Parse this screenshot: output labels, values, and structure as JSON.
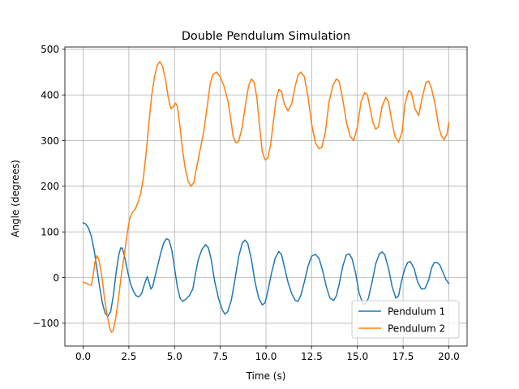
{
  "chart_data": {
    "type": "line",
    "title": "Double Pendulum Simulation",
    "xlabel": "Time (s)",
    "ylabel": "Angle (degrees)",
    "xlim": [
      -1.0,
      21.0
    ],
    "ylim": [
      -150,
      505
    ],
    "grid": true,
    "legend": "lower-right",
    "xticks": [
      0.0,
      2.5,
      5.0,
      7.5,
      10.0,
      12.5,
      15.0,
      17.5,
      20.0
    ],
    "xtick_labels": [
      "0.0",
      "2.5",
      "5.0",
      "7.5",
      "10.0",
      "12.5",
      "15.0",
      "17.5",
      "20.0"
    ],
    "yticks": [
      -100,
      0,
      100,
      200,
      300,
      400,
      500
    ],
    "ytick_labels": [
      "−100",
      "0",
      "100",
      "200",
      "300",
      "400",
      "500"
    ],
    "series": [
      {
        "name": "Pendulum 1",
        "color": "#1f77b4",
        "points": [
          [
            0.0,
            120
          ],
          [
            0.15,
            117
          ],
          [
            0.3,
            108
          ],
          [
            0.45,
            90
          ],
          [
            0.6,
            60
          ],
          [
            0.75,
            20
          ],
          [
            0.9,
            -20
          ],
          [
            1.05,
            -55
          ],
          [
            1.2,
            -78
          ],
          [
            1.35,
            -85
          ],
          [
            1.5,
            -75
          ],
          [
            1.65,
            -40
          ],
          [
            1.8,
            10
          ],
          [
            1.95,
            50
          ],
          [
            2.05,
            65
          ],
          [
            2.15,
            64
          ],
          [
            2.3,
            40
          ],
          [
            2.45,
            10
          ],
          [
            2.6,
            -15
          ],
          [
            2.75,
            -30
          ],
          [
            2.9,
            -40
          ],
          [
            3.05,
            -42
          ],
          [
            3.2,
            -35
          ],
          [
            3.35,
            -15
          ],
          [
            3.5,
            2
          ],
          [
            3.6,
            -10
          ],
          [
            3.7,
            -25
          ],
          [
            3.8,
            -20
          ],
          [
            3.95,
            5
          ],
          [
            4.1,
            30
          ],
          [
            4.25,
            55
          ],
          [
            4.4,
            75
          ],
          [
            4.55,
            85
          ],
          [
            4.7,
            82
          ],
          [
            4.85,
            60
          ],
          [
            5.0,
            20
          ],
          [
            5.15,
            -20
          ],
          [
            5.3,
            -45
          ],
          [
            5.45,
            -52
          ],
          [
            5.6,
            -48
          ],
          [
            5.8,
            -40
          ],
          [
            6.0,
            -25
          ],
          [
            6.15,
            10
          ],
          [
            6.3,
            40
          ],
          [
            6.5,
            62
          ],
          [
            6.7,
            72
          ],
          [
            6.85,
            65
          ],
          [
            7.0,
            40
          ],
          [
            7.2,
            -10
          ],
          [
            7.4,
            -45
          ],
          [
            7.6,
            -70
          ],
          [
            7.75,
            -80
          ],
          [
            7.9,
            -75
          ],
          [
            8.1,
            -50
          ],
          [
            8.3,
            -5
          ],
          [
            8.5,
            45
          ],
          [
            8.7,
            75
          ],
          [
            8.85,
            82
          ],
          [
            9.0,
            75
          ],
          [
            9.2,
            40
          ],
          [
            9.4,
            -10
          ],
          [
            9.6,
            -45
          ],
          [
            9.8,
            -60
          ],
          [
            9.95,
            -55
          ],
          [
            10.1,
            -30
          ],
          [
            10.3,
            10
          ],
          [
            10.5,
            42
          ],
          [
            10.7,
            57
          ],
          [
            10.85,
            50
          ],
          [
            11.0,
            25
          ],
          [
            11.2,
            -10
          ],
          [
            11.4,
            -35
          ],
          [
            11.6,
            -50
          ],
          [
            11.75,
            -52
          ],
          [
            11.9,
            -40
          ],
          [
            12.1,
            -10
          ],
          [
            12.3,
            25
          ],
          [
            12.5,
            47
          ],
          [
            12.7,
            51
          ],
          [
            12.9,
            42
          ],
          [
            13.1,
            15
          ],
          [
            13.3,
            -20
          ],
          [
            13.5,
            -45
          ],
          [
            13.7,
            -50
          ],
          [
            13.85,
            -40
          ],
          [
            14.0,
            -15
          ],
          [
            14.2,
            25
          ],
          [
            14.4,
            50
          ],
          [
            14.55,
            52
          ],
          [
            14.7,
            42
          ],
          [
            14.9,
            10
          ],
          [
            15.1,
            -35
          ],
          [
            15.3,
            -57
          ],
          [
            15.45,
            -58
          ],
          [
            15.6,
            -45
          ],
          [
            15.8,
            -10
          ],
          [
            16.0,
            30
          ],
          [
            16.2,
            52
          ],
          [
            16.35,
            56
          ],
          [
            16.5,
            50
          ],
          [
            16.7,
            20
          ],
          [
            16.9,
            -20
          ],
          [
            17.1,
            -45
          ],
          [
            17.25,
            -40
          ],
          [
            17.4,
            -10
          ],
          [
            17.6,
            20
          ],
          [
            17.75,
            33
          ],
          [
            17.9,
            35
          ],
          [
            18.1,
            20
          ],
          [
            18.3,
            -10
          ],
          [
            18.5,
            -25
          ],
          [
            18.7,
            -24
          ],
          [
            18.9,
            -5
          ],
          [
            19.05,
            20
          ],
          [
            19.2,
            33
          ],
          [
            19.35,
            33
          ],
          [
            19.5,
            28
          ],
          [
            19.7,
            10
          ],
          [
            19.85,
            -5
          ],
          [
            20.0,
            -13
          ]
        ]
      },
      {
        "name": "Pendulum 2",
        "color": "#ff7f0e",
        "points": [
          [
            0.0,
            -10
          ],
          [
            0.15,
            -12
          ],
          [
            0.3,
            -15
          ],
          [
            0.45,
            -17
          ],
          [
            0.55,
            5
          ],
          [
            0.65,
            35
          ],
          [
            0.75,
            48
          ],
          [
            0.85,
            40
          ],
          [
            0.95,
            20
          ],
          [
            1.05,
            -5
          ],
          [
            1.15,
            -40
          ],
          [
            1.3,
            -80
          ],
          [
            1.45,
            -110
          ],
          [
            1.55,
            -120
          ],
          [
            1.65,
            -115
          ],
          [
            1.8,
            -85
          ],
          [
            1.95,
            -40
          ],
          [
            2.1,
            10
          ],
          [
            2.25,
            50
          ],
          [
            2.4,
            95
          ],
          [
            2.55,
            130
          ],
          [
            2.7,
            143
          ],
          [
            2.85,
            150
          ],
          [
            3.0,
            165
          ],
          [
            3.15,
            185
          ],
          [
            3.3,
            220
          ],
          [
            3.45,
            275
          ],
          [
            3.6,
            340
          ],
          [
            3.75,
            400
          ],
          [
            3.9,
            440
          ],
          [
            4.05,
            465
          ],
          [
            4.2,
            473
          ],
          [
            4.35,
            462
          ],
          [
            4.5,
            435
          ],
          [
            4.65,
            395
          ],
          [
            4.8,
            370
          ],
          [
            4.95,
            375
          ],
          [
            5.05,
            382
          ],
          [
            5.15,
            375
          ],
          [
            5.3,
            330
          ],
          [
            5.45,
            275
          ],
          [
            5.6,
            235
          ],
          [
            5.75,
            210
          ],
          [
            5.9,
            200
          ],
          [
            6.05,
            208
          ],
          [
            6.2,
            240
          ],
          [
            6.4,
            280
          ],
          [
            6.6,
            320
          ],
          [
            6.8,
            380
          ],
          [
            6.95,
            425
          ],
          [
            7.1,
            445
          ],
          [
            7.3,
            450
          ],
          [
            7.5,
            440
          ],
          [
            7.7,
            420
          ],
          [
            7.9,
            390
          ],
          [
            8.05,
            355
          ],
          [
            8.2,
            310
          ],
          [
            8.35,
            295
          ],
          [
            8.5,
            298
          ],
          [
            8.7,
            330
          ],
          [
            8.9,
            385
          ],
          [
            9.05,
            420
          ],
          [
            9.2,
            435
          ],
          [
            9.35,
            428
          ],
          [
            9.5,
            395
          ],
          [
            9.65,
            330
          ],
          [
            9.8,
            275
          ],
          [
            9.95,
            258
          ],
          [
            10.1,
            262
          ],
          [
            10.25,
            290
          ],
          [
            10.4,
            340
          ],
          [
            10.55,
            390
          ],
          [
            10.7,
            412
          ],
          [
            10.85,
            408
          ],
          [
            11.0,
            380
          ],
          [
            11.2,
            365
          ],
          [
            11.4,
            380
          ],
          [
            11.6,
            420
          ],
          [
            11.75,
            443
          ],
          [
            11.9,
            450
          ],
          [
            12.1,
            440
          ],
          [
            12.3,
            395
          ],
          [
            12.5,
            335
          ],
          [
            12.7,
            295
          ],
          [
            12.9,
            282
          ],
          [
            13.05,
            285
          ],
          [
            13.25,
            320
          ],
          [
            13.45,
            385
          ],
          [
            13.65,
            420
          ],
          [
            13.85,
            435
          ],
          [
            14.0,
            430
          ],
          [
            14.2,
            390
          ],
          [
            14.4,
            340
          ],
          [
            14.6,
            310
          ],
          [
            14.8,
            300
          ],
          [
            15.0,
            330
          ],
          [
            15.2,
            385
          ],
          [
            15.4,
            405
          ],
          [
            15.55,
            400
          ],
          [
            15.7,
            370
          ],
          [
            15.85,
            340
          ],
          [
            16.0,
            325
          ],
          [
            16.15,
            330
          ],
          [
            16.35,
            375
          ],
          [
            16.55,
            395
          ],
          [
            16.7,
            385
          ],
          [
            16.85,
            350
          ],
          [
            17.05,
            310
          ],
          [
            17.25,
            297
          ],
          [
            17.45,
            320
          ],
          [
            17.6,
            380
          ],
          [
            17.8,
            410
          ],
          [
            17.95,
            405
          ],
          [
            18.15,
            370
          ],
          [
            18.35,
            355
          ],
          [
            18.55,
            395
          ],
          [
            18.75,
            428
          ],
          [
            18.9,
            430
          ],
          [
            19.05,
            415
          ],
          [
            19.25,
            380
          ],
          [
            19.45,
            330
          ],
          [
            19.6,
            310
          ],
          [
            19.75,
            302
          ],
          [
            19.9,
            315
          ],
          [
            20.0,
            340
          ]
        ]
      }
    ]
  }
}
